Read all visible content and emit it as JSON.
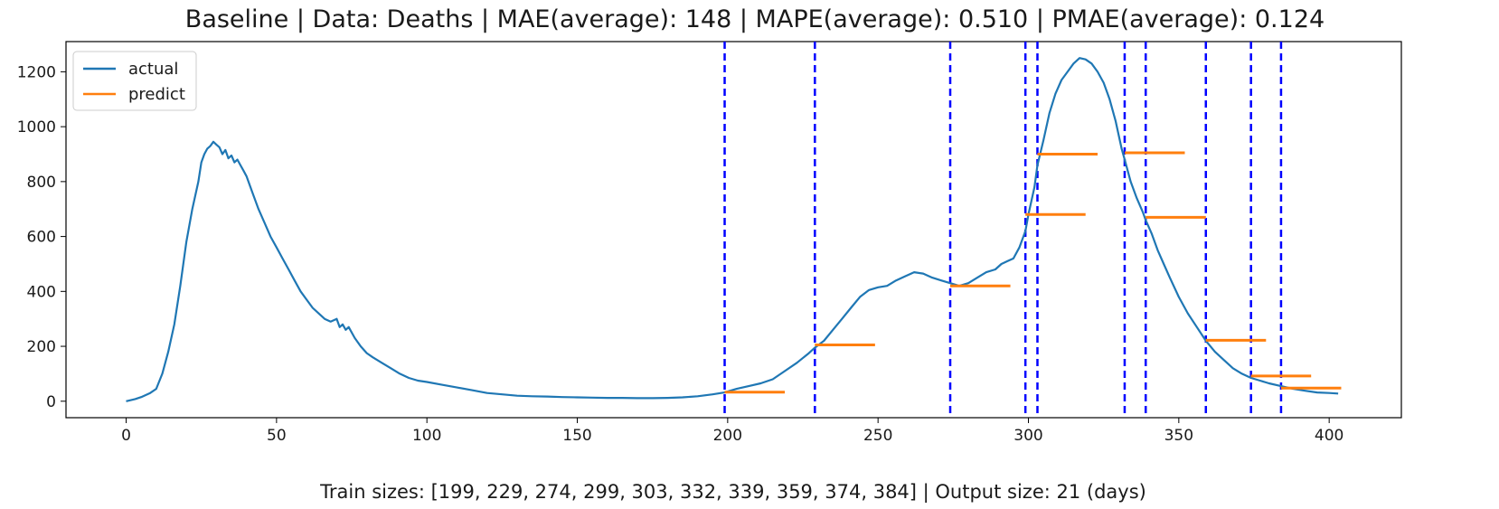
{
  "chart_data": {
    "type": "line",
    "title": "Baseline | Data: Deaths | MAE(average): 148 | MAPE(average): 0.510 | PMAE(average): 0.124",
    "xlabel": "Train sizes: [199, 229, 274, 299, 303, 332, 339, 359, 374, 384] | Output size: 21 (days)",
    "ylabel": "",
    "xlim": [
      -20,
      424
    ],
    "ylim": [
      -60,
      1310
    ],
    "xticks": [
      0,
      50,
      100,
      150,
      200,
      250,
      300,
      350,
      400
    ],
    "yticks": [
      0,
      200,
      400,
      600,
      800,
      1000,
      1200
    ],
    "grid": false,
    "legend": {
      "placement": "top-left",
      "entries": [
        "actual",
        "predict"
      ]
    },
    "colors": {
      "actual": "#1f77b4",
      "predict": "#ff7f0e",
      "split_lines": "#0000ff"
    },
    "series": [
      {
        "name": "actual",
        "x": [
          0,
          3,
          5,
          8,
          10,
          12,
          14,
          16,
          18,
          20,
          22,
          24,
          25,
          26,
          27,
          28,
          29,
          30,
          31,
          32,
          33,
          34,
          35,
          36,
          37,
          38,
          39,
          40,
          42,
          44,
          46,
          48,
          50,
          52,
          54,
          56,
          58,
          60,
          62,
          64,
          66,
          68,
          70,
          71,
          72,
          73,
          74,
          76,
          78,
          80,
          82,
          85,
          88,
          91,
          94,
          97,
          100,
          105,
          110,
          115,
          120,
          125,
          130,
          135,
          140,
          145,
          150,
          155,
          160,
          165,
          170,
          175,
          180,
          185,
          190,
          195,
          199,
          203,
          207,
          211,
          215,
          219,
          223,
          227,
          229,
          232,
          235,
          238,
          241,
          244,
          247,
          250,
          253,
          256,
          259,
          262,
          265,
          268,
          271,
          274,
          277,
          280,
          283,
          286,
          289,
          291,
          293,
          295,
          297,
          299,
          300,
          302,
          303,
          305,
          307,
          309,
          311,
          313,
          315,
          317,
          319,
          321,
          323,
          325,
          327,
          329,
          331,
          332,
          334,
          336,
          338,
          339,
          341,
          343,
          345,
          347,
          350,
          353,
          356,
          359,
          362,
          365,
          368,
          371,
          374,
          377,
          380,
          384,
          388,
          392,
          396,
          400,
          403
        ],
        "values": [
          0,
          8,
          15,
          30,
          45,
          100,
          180,
          280,
          420,
          580,
          700,
          800,
          870,
          900,
          920,
          930,
          945,
          935,
          925,
          900,
          915,
          885,
          895,
          870,
          880,
          860,
          840,
          820,
          760,
          700,
          650,
          600,
          560,
          520,
          480,
          440,
          400,
          370,
          340,
          320,
          300,
          290,
          300,
          270,
          280,
          260,
          270,
          230,
          200,
          175,
          160,
          140,
          120,
          100,
          85,
          75,
          70,
          60,
          50,
          40,
          30,
          25,
          20,
          18,
          17,
          15,
          14,
          13,
          12,
          12,
          11,
          11,
          12,
          14,
          18,
          25,
          32,
          45,
          55,
          65,
          80,
          110,
          140,
          175,
          195,
          220,
          260,
          300,
          340,
          380,
          405,
          415,
          420,
          440,
          455,
          470,
          465,
          450,
          440,
          430,
          420,
          430,
          450,
          470,
          480,
          500,
          510,
          520,
          560,
          620,
          680,
          780,
          860,
          950,
          1050,
          1120,
          1170,
          1200,
          1230,
          1250,
          1245,
          1230,
          1200,
          1160,
          1100,
          1020,
          920,
          880,
          800,
          740,
          690,
          660,
          610,
          550,
          500,
          450,
          380,
          320,
          270,
          220,
          180,
          150,
          120,
          100,
          85,
          75,
          65,
          55,
          45,
          38,
          32,
          30,
          28
        ]
      }
    ],
    "predict_segments": [
      {
        "start": 199,
        "end": 219,
        "value": 33
      },
      {
        "start": 229,
        "end": 249,
        "value": 205
      },
      {
        "start": 274,
        "end": 294,
        "value": 420
      },
      {
        "start": 299,
        "end": 319,
        "value": 680
      },
      {
        "start": 303,
        "end": 323,
        "value": 900
      },
      {
        "start": 332,
        "end": 352,
        "value": 905
      },
      {
        "start": 339,
        "end": 359,
        "value": 670
      },
      {
        "start": 359,
        "end": 379,
        "value": 222
      },
      {
        "start": 374,
        "end": 394,
        "value": 92
      },
      {
        "start": 384,
        "end": 404,
        "value": 48
      }
    ],
    "split_lines": [
      199,
      229,
      274,
      299,
      303,
      332,
      339,
      359,
      374,
      384
    ]
  }
}
